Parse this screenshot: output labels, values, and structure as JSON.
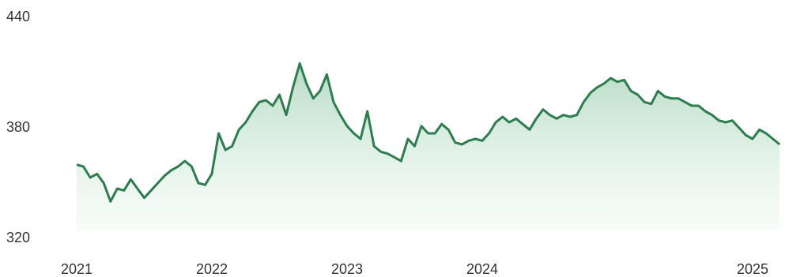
{
  "chart_data": {
    "type": "line",
    "categories": [
      "2021",
      null,
      null,
      null,
      null,
      null,
      null,
      null,
      null,
      null,
      null,
      null,
      null,
      null,
      null,
      null,
      null,
      null,
      null,
      null,
      "2022",
      null,
      null,
      null,
      null,
      null,
      null,
      null,
      null,
      null,
      null,
      null,
      null,
      null,
      null,
      null,
      null,
      null,
      null,
      null,
      "2023",
      null,
      null,
      null,
      null,
      null,
      null,
      null,
      null,
      null,
      null,
      null,
      null,
      null,
      null,
      null,
      null,
      null,
      null,
      null,
      "2024",
      null,
      null,
      null,
      null,
      null,
      null,
      null,
      null,
      null,
      null,
      null,
      null,
      null,
      null,
      null,
      null,
      null,
      null,
      null,
      null,
      null,
      null,
      null,
      null,
      null,
      null,
      null,
      null,
      null,
      null,
      null,
      null,
      null,
      null,
      null,
      null,
      null,
      null,
      null,
      "2025",
      null,
      null,
      null,
      null
    ],
    "values": [
      360,
      359,
      353,
      355,
      350,
      340,
      347,
      346,
      352,
      347,
      342,
      346,
      350,
      354,
      357,
      359,
      362,
      359,
      350,
      349,
      355,
      377,
      368,
      370,
      379,
      383,
      389,
      394,
      395,
      392,
      398,
      387,
      402,
      415,
      404,
      396,
      400,
      409,
      394,
      387,
      381,
      377,
      374,
      389,
      370,
      367,
      366,
      364,
      362,
      374,
      370,
      381,
      377,
      377,
      382,
      379,
      372,
      371,
      373,
      374,
      373,
      377,
      383,
      386,
      383,
      385,
      382,
      379,
      385,
      390,
      387,
      385,
      387,
      386,
      387,
      394,
      399,
      402,
      404,
      407,
      405,
      406,
      400,
      398,
      394,
      393,
      400,
      397,
      396,
      396,
      394,
      392,
      392,
      389,
      387,
      384,
      383,
      384,
      380,
      376,
      374,
      379,
      377,
      374,
      371
    ],
    "color": "#2e7d4f",
    "area": true,
    "ylim": [
      320,
      440
    ],
    "yticks": [
      320,
      380,
      440
    ],
    "grid": false
  }
}
